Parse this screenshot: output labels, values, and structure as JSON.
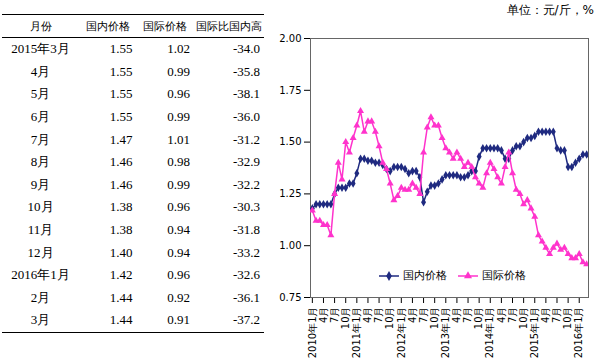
{
  "unit": "单位：元/斤，%",
  "table": {
    "header": [
      "月份",
      "国内价格",
      "国际价格",
      "国际比国内高"
    ],
    "rows": [
      [
        "2015年3月",
        "1.55",
        "1.02",
        "-34.0"
      ],
      [
        "4月",
        "1.55",
        "0.99",
        "-35.8"
      ],
      [
        "5月",
        "1.55",
        "0.96",
        "-38.1"
      ],
      [
        "6月",
        "1.55",
        "0.99",
        "-36.0"
      ],
      [
        "7月",
        "1.47",
        "1.01",
        "-31.2"
      ],
      [
        "8月",
        "1.46",
        "0.98",
        "-32.9"
      ],
      [
        "9月",
        "1.46",
        "0.99",
        "-32.2"
      ],
      [
        "10月",
        "1.38",
        "0.96",
        "-30.3"
      ],
      [
        "11月",
        "1.38",
        "0.94",
        "-31.8"
      ],
      [
        "12月",
        "1.40",
        "0.94",
        "-33.2"
      ],
      [
        "2016年1月",
        "1.42",
        "0.96",
        "-32.6"
      ],
      [
        "2月",
        "1.44",
        "0.92",
        "-36.1"
      ],
      [
        "3月",
        "1.44",
        "0.91",
        "-37.2"
      ]
    ]
  },
  "chart_data": {
    "type": "line",
    "categories": [
      "2010年1月",
      null,
      null,
      "4月",
      null,
      null,
      "7月",
      null,
      null,
      "10月",
      null,
      null,
      "2011年1月",
      null,
      null,
      "4月",
      null,
      null,
      "7月",
      null,
      null,
      "10月",
      null,
      null,
      "2012年1月",
      null,
      null,
      "4月",
      null,
      null,
      "7月",
      null,
      null,
      "10月",
      null,
      null,
      "2013年1月",
      null,
      null,
      "4月",
      null,
      null,
      "7月",
      null,
      null,
      "10月",
      null,
      null,
      "2014年1月",
      null,
      null,
      "4月",
      null,
      null,
      "7月",
      null,
      null,
      "10月",
      null,
      null,
      "2015年1月",
      null,
      null,
      "4月",
      null,
      null,
      "7月",
      null,
      null,
      "10月",
      null,
      null,
      "2016年1月",
      null,
      null
    ],
    "series": [
      {
        "name": "国内价格",
        "color": "#1f2a80",
        "marker": "diamond",
        "values": [
          1.18,
          1.2,
          1.2,
          1.2,
          1.2,
          1.2,
          1.25,
          1.28,
          1.28,
          1.28,
          1.3,
          1.3,
          1.35,
          1.42,
          1.42,
          1.41,
          1.41,
          1.4,
          1.4,
          1.39,
          1.37,
          1.36,
          1.38,
          1.38,
          1.38,
          1.37,
          1.35,
          1.36,
          1.36,
          1.33,
          1.21,
          1.26,
          1.29,
          1.29,
          1.3,
          1.32,
          1.34,
          1.34,
          1.34,
          1.34,
          1.33,
          1.33,
          1.34,
          1.36,
          1.36,
          1.43,
          1.47,
          1.47,
          1.47,
          1.47,
          1.47,
          1.46,
          1.42,
          1.42,
          1.46,
          1.48,
          1.48,
          1.5,
          1.52,
          1.52,
          1.53,
          1.55,
          1.55,
          1.55,
          1.55,
          1.55,
          1.47,
          1.46,
          1.46,
          1.38,
          1.38,
          1.4,
          1.42,
          1.44,
          1.44
        ]
      },
      {
        "name": "国际价格",
        "color": "#ff33cc",
        "marker": "triangle",
        "values": [
          1.17,
          1.12,
          1.12,
          1.1,
          1.1,
          1.05,
          1.25,
          1.4,
          1.32,
          1.5,
          1.45,
          1.52,
          1.58,
          1.65,
          1.55,
          1.6,
          1.6,
          1.55,
          1.48,
          1.4,
          1.37,
          1.3,
          1.22,
          1.24,
          1.28,
          1.27,
          1.27,
          1.3,
          1.28,
          1.25,
          1.45,
          1.57,
          1.62,
          1.58,
          1.58,
          1.52,
          1.47,
          1.45,
          1.42,
          1.45,
          1.42,
          1.38,
          1.4,
          1.38,
          1.33,
          1.3,
          1.28,
          1.35,
          1.4,
          1.37,
          1.33,
          1.3,
          1.38,
          1.45,
          1.35,
          1.27,
          1.25,
          1.2,
          1.22,
          1.18,
          1.14,
          1.05,
          1.02,
          0.99,
          0.96,
          0.99,
          1.01,
          0.98,
          0.99,
          0.96,
          0.94,
          0.94,
          0.96,
          0.92,
          0.91
        ]
      }
    ],
    "ylim": [
      0.75,
      2.0
    ],
    "yticks": [
      {
        "value": 0.75,
        "label": "0.75"
      },
      {
        "value": 1.0,
        "label": "1.00"
      },
      {
        "value": 1.25,
        "label": "1.25"
      },
      {
        "value": 1.5,
        "label": "1.50"
      },
      {
        "value": 1.75,
        "label": "1.75"
      },
      {
        "value": 2.0,
        "label": "2.00"
      }
    ],
    "grid": false,
    "legend": "bottom"
  }
}
